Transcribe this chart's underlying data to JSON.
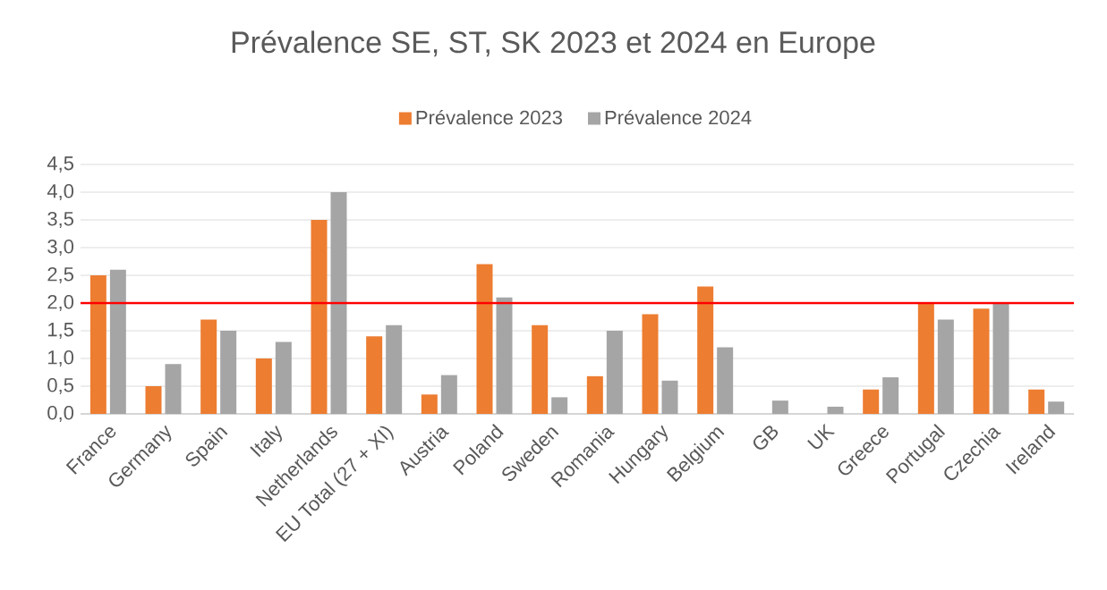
{
  "chart_data": {
    "type": "bar",
    "title": "Prévalence SE, ST, SK 2023 et 2024 en Europe",
    "categories": [
      "France",
      "Germany",
      "Spain",
      "Italy",
      "Netherlands",
      "EU Total (27 + XI)",
      "Austria",
      "Poland",
      "Sweden",
      "Romania",
      "Hungary",
      "Belgium",
      "GB",
      "UK",
      "Greece",
      "Portugal",
      "Czechia",
      "Ireland"
    ],
    "series": [
      {
        "name": "Prévalence 2023",
        "color": "#ed7d31",
        "values": [
          2.5,
          0.5,
          1.7,
          1.0,
          3.5,
          1.4,
          0.35,
          2.7,
          1.6,
          0.68,
          1.8,
          2.3,
          null,
          null,
          0.44,
          2.0,
          1.9,
          0.44
        ]
      },
      {
        "name": "Prévalence 2024",
        "color": "#a5a5a5",
        "values": [
          2.6,
          0.9,
          1.5,
          1.3,
          4.0,
          1.6,
          0.7,
          2.1,
          0.3,
          1.5,
          0.6,
          1.2,
          0.24,
          0.13,
          0.66,
          1.7,
          2.0,
          0.22
        ]
      }
    ],
    "ylim": [
      0,
      4.5
    ],
    "yticks": [
      {
        "value": 0,
        "label": "0,0"
      },
      {
        "value": 0.5,
        "label": "0,5"
      },
      {
        "value": 1,
        "label": "1,0"
      },
      {
        "value": 1.5,
        "label": "1,5"
      },
      {
        "value": 2,
        "label": "2,0"
      },
      {
        "value": 2.5,
        "label": "2,5"
      },
      {
        "value": 3,
        "label": "3,0"
      },
      {
        "value": 3.5,
        "label": "3,5"
      },
      {
        "value": 4,
        "label": "4,0"
      },
      {
        "value": 4.5,
        "label": "4,5"
      }
    ],
    "ref_lines": [
      {
        "axis": "y",
        "value": 2,
        "color": "#ff0000"
      }
    ],
    "grid": "y",
    "legend": "top"
  }
}
